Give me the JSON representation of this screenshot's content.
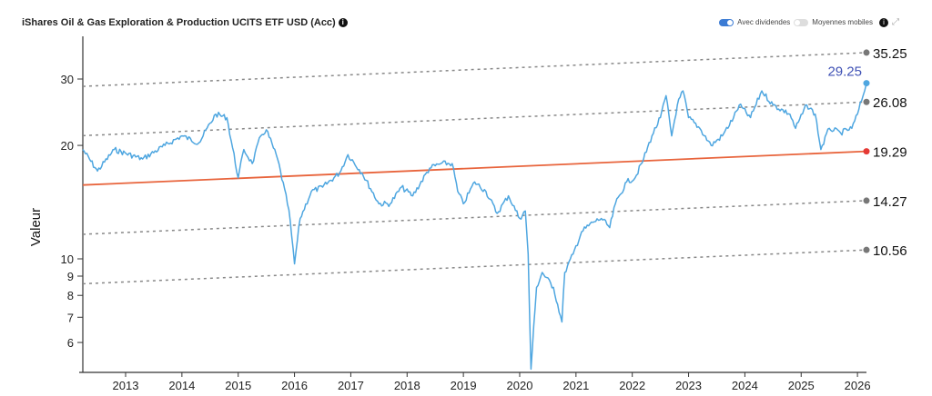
{
  "header": {
    "title": "iShares Oil & Gas Exploration & Production UCITS ETF USD (Acc)",
    "info_icon": "i"
  },
  "controls": {
    "dividends_label": "Avec dividendes",
    "dividends_on": true,
    "moving_avg_label": "Moyennes mobiles",
    "moving_avg_on": false,
    "info_icon": "i",
    "expand_icon": "expand-icon"
  },
  "chart_data": {
    "type": "line",
    "ylabel": "Valeur",
    "yscale": "log",
    "ylim": [
      5,
      38
    ],
    "xlim": [
      2012.24,
      2026.16
    ],
    "yticks": [
      6,
      7,
      8,
      9,
      10,
      20,
      30
    ],
    "xticks": [
      2013,
      2014,
      2015,
      2016,
      2017,
      2018,
      2019,
      2020,
      2021,
      2022,
      2023,
      2024,
      2025,
      2026
    ],
    "series": {
      "name": "Valeur",
      "color": "#4ea6e0",
      "points": [
        [
          2012.24,
          19.5
        ],
        [
          2012.5,
          17.1
        ],
        [
          2012.8,
          19.5
        ],
        [
          2013.3,
          18.4
        ],
        [
          2013.7,
          20.0
        ],
        [
          2014.0,
          21.2
        ],
        [
          2014.3,
          20.3
        ],
        [
          2014.6,
          24.2
        ],
        [
          2014.8,
          23.7
        ],
        [
          2015.0,
          16.4
        ],
        [
          2015.1,
          19.5
        ],
        [
          2015.25,
          17.9
        ],
        [
          2015.4,
          21.2
        ],
        [
          2015.5,
          22.0
        ],
        [
          2015.7,
          18.4
        ],
        [
          2015.9,
          13.5
        ],
        [
          2016.0,
          9.7
        ],
        [
          2016.1,
          12.8
        ],
        [
          2016.3,
          15.1
        ],
        [
          2016.5,
          15.5
        ],
        [
          2016.8,
          16.9
        ],
        [
          2016.95,
          18.9
        ],
        [
          2017.2,
          16.9
        ],
        [
          2017.5,
          14.0
        ],
        [
          2017.7,
          14.0
        ],
        [
          2017.9,
          15.5
        ],
        [
          2018.1,
          14.7
        ],
        [
          2018.4,
          17.4
        ],
        [
          2018.6,
          17.9
        ],
        [
          2018.8,
          17.9
        ],
        [
          2018.9,
          15.1
        ],
        [
          2019.0,
          14.0
        ],
        [
          2019.2,
          16.0
        ],
        [
          2019.4,
          15.1
        ],
        [
          2019.6,
          13.2
        ],
        [
          2019.8,
          14.7
        ],
        [
          2020.0,
          12.8
        ],
        [
          2020.1,
          13.4
        ],
        [
          2020.15,
          10.3
        ],
        [
          2020.2,
          5.1
        ],
        [
          2020.3,
          8.4
        ],
        [
          2020.4,
          9.2
        ],
        [
          2020.6,
          8.4
        ],
        [
          2020.75,
          6.8
        ],
        [
          2020.8,
          9.2
        ],
        [
          2020.95,
          10.3
        ],
        [
          2021.1,
          11.8
        ],
        [
          2021.3,
          12.5
        ],
        [
          2021.45,
          12.8
        ],
        [
          2021.6,
          12.1
        ],
        [
          2021.7,
          14.0
        ],
        [
          2021.9,
          16.0
        ],
        [
          2022.05,
          16.4
        ],
        [
          2022.2,
          18.4
        ],
        [
          2022.35,
          21.2
        ],
        [
          2022.5,
          23.7
        ],
        [
          2022.6,
          27.1
        ],
        [
          2022.7,
          21.2
        ],
        [
          2022.8,
          25.6
        ],
        [
          2022.9,
          27.9
        ],
        [
          2023.0,
          23.7
        ],
        [
          2023.2,
          22.2
        ],
        [
          2023.4,
          20.0
        ],
        [
          2023.6,
          21.2
        ],
        [
          2023.8,
          23.7
        ],
        [
          2023.9,
          25.6
        ],
        [
          2024.1,
          23.7
        ],
        [
          2024.3,
          27.9
        ],
        [
          2024.5,
          25.6
        ],
        [
          2024.8,
          24.2
        ],
        [
          2024.9,
          22.2
        ],
        [
          2025.1,
          25.6
        ],
        [
          2025.25,
          24.2
        ],
        [
          2025.35,
          19.5
        ],
        [
          2025.5,
          22.2
        ],
        [
          2025.7,
          21.6
        ],
        [
          2025.9,
          22.2
        ],
        [
          2026.0,
          24.2
        ],
        [
          2026.1,
          27.1
        ],
        [
          2026.16,
          29.25
        ]
      ]
    },
    "trend": {
      "color": "#e8643c",
      "start": [
        2012.24,
        15.7
      ],
      "end": [
        2026.16,
        19.29
      ],
      "end_label": "19.29"
    },
    "bands": [
      {
        "end_label": "35.25",
        "end": 35.25,
        "factor": 1.827
      },
      {
        "end_label": "26.08",
        "end": 26.08,
        "factor": 1.352
      },
      {
        "end_label": "14.27",
        "end": 14.27,
        "factor": 0.74
      },
      {
        "end_label": "10.56",
        "end": 10.56,
        "factor": 0.547
      }
    ],
    "last_value_label": "29.25",
    "last_value_color": "#3f51b5"
  }
}
